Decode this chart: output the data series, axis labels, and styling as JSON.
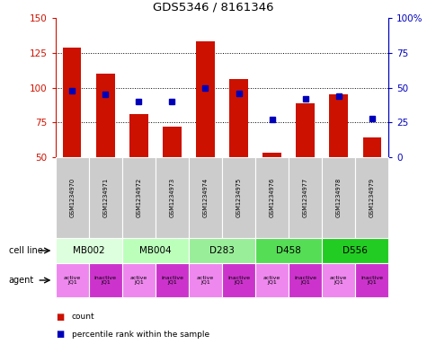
{
  "title": "GDS5346 / 8161346",
  "samples": [
    "GSM1234970",
    "GSM1234971",
    "GSM1234972",
    "GSM1234973",
    "GSM1234974",
    "GSM1234975",
    "GSM1234976",
    "GSM1234977",
    "GSM1234978",
    "GSM1234979"
  ],
  "counts": [
    129,
    110,
    81,
    72,
    133,
    106,
    53,
    89,
    95,
    64
  ],
  "percentile_ranks": [
    48,
    45,
    40,
    40,
    50,
    46,
    27,
    42,
    44,
    28
  ],
  "ylim_left": [
    50,
    150
  ],
  "ylim_right": [
    0,
    100
  ],
  "yticks_left": [
    50,
    75,
    100,
    125,
    150
  ],
  "yticks_right": [
    0,
    25,
    50,
    75,
    100
  ],
  "bar_color": "#cc1100",
  "dot_color": "#0000bb",
  "cell_line_colors": [
    "#ddffdd",
    "#bbffbb",
    "#99ee99",
    "#55dd55",
    "#22cc22"
  ],
  "cell_lines": [
    {
      "label": "MB002",
      "cols": [
        0,
        1
      ]
    },
    {
      "label": "MB004",
      "cols": [
        2,
        3
      ]
    },
    {
      "label": "D283",
      "cols": [
        4,
        5
      ]
    },
    {
      "label": "D458",
      "cols": [
        6,
        7
      ]
    },
    {
      "label": "D556",
      "cols": [
        8,
        9
      ]
    }
  ],
  "agent_active_color": "#ee88ee",
  "agent_inactive_color": "#cc33cc",
  "left_axis_color": "#cc1100",
  "right_axis_color": "#0000bb",
  "sample_bg_color": "#cccccc",
  "grid_color": "#333333"
}
